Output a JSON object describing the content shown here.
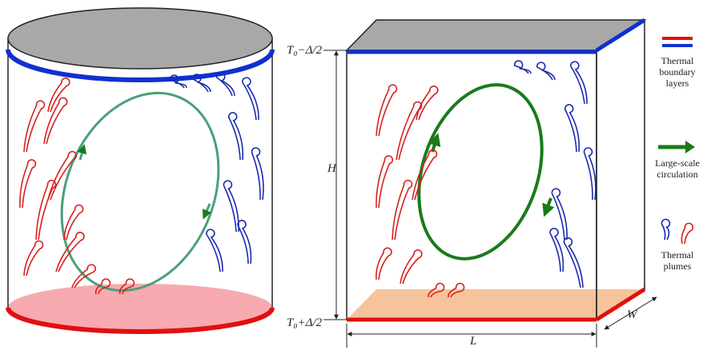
{
  "labels": {
    "top_temperature": "T₀−Δ/2",
    "bottom_temperature": "T₀+Δ/2",
    "height": "H",
    "length": "L",
    "width": "W"
  },
  "legend": {
    "items": [
      {
        "lines": [
          "Thermal",
          "boundary",
          "layers"
        ]
      },
      {
        "lines": [
          "Large-scale",
          "circulation"
        ]
      },
      {
        "lines": [
          "Thermal",
          "plumes"
        ]
      }
    ]
  }
}
